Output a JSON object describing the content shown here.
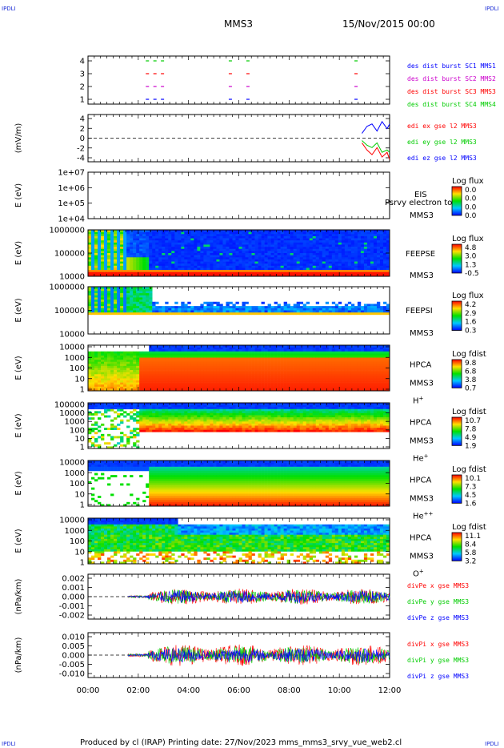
{
  "header": {
    "mission": "MMS3",
    "date": "15/Nov/2015 00:00",
    "corner_tl": "IPDLI",
    "corner_tr": "IPDLI",
    "corner_bl": "IPDLI",
    "corner_br": "IPDLI"
  },
  "footer": {
    "text": "Produced by cl (IRAP)   Printing date: 27/Nov/2023   mms_mms3_srvy_vue_web2.cl"
  },
  "colors": {
    "mms1": "#0000ff",
    "mms2": "#cc00cc",
    "mms3": "#ff0000",
    "mms4": "#00cc00",
    "frame": "#000000"
  },
  "chart_data": [
    {
      "type": "scatter",
      "panel": "burst",
      "ylim": [
        0.5,
        4.5
      ],
      "yticks": [
        "1",
        "2",
        "3",
        "4"
      ],
      "legend": [
        "des dist burst SC1 MMS1",
        "des dist burst SC2 MMS2",
        "des dist burst SC3 MMS3",
        "des dist burst SC4 MMS4"
      ],
      "series": [
        {
          "name": "des dist burst SC1 MMS1",
          "color": "#0000ff",
          "y": 1,
          "x": [
            2.3,
            2.6,
            2.9,
            5.6,
            6.3,
            10.6
          ]
        },
        {
          "name": "des dist burst SC2 MMS2",
          "color": "#cc00cc",
          "y": 2,
          "x": [
            2.3,
            2.6,
            2.9,
            5.6,
            6.3,
            10.6
          ]
        },
        {
          "name": "des dist burst SC3 MMS3",
          "color": "#ff0000",
          "y": 3,
          "x": [
            2.3,
            2.6,
            2.9,
            5.6,
            6.3,
            10.6
          ]
        },
        {
          "name": "des dist burst SC4 MMS4",
          "color": "#00cc00",
          "y": 4,
          "x": [
            2.3,
            2.6,
            2.9,
            5.6,
            6.3,
            10.6
          ]
        }
      ]
    },
    {
      "type": "line",
      "panel": "edi",
      "ylabel": "(mV/m)",
      "ylim": [
        -5,
        5
      ],
      "yticks": [
        "4",
        "2",
        "0",
        "-2",
        "-4"
      ],
      "legend": [
        "edi ex gse l2 MMS3",
        "edi ey gse l2 MMS3",
        "edi ez gse l2 MMS3"
      ],
      "series": [
        {
          "name": "edi ex gse l2 MMS3",
          "color": "#ff0000",
          "x": [
            10.9,
            11.1,
            11.3,
            11.5,
            11.7,
            11.9,
            12.0
          ],
          "values": [
            -1.0,
            -2.5,
            -3.5,
            -2.0,
            -4.0,
            -3.0,
            -4.5
          ]
        },
        {
          "name": "edi ey gse l2 MMS3",
          "color": "#00cc00",
          "x": [
            10.9,
            11.1,
            11.3,
            11.5,
            11.7,
            11.9,
            12.0
          ],
          "values": [
            -0.5,
            -1.5,
            -2.0,
            -1.0,
            -3.0,
            -2.5,
            -3.0
          ]
        },
        {
          "name": "edi ez gse l2 MMS3",
          "color": "#0000ff",
          "x": [
            10.9,
            11.1,
            11.3,
            11.5,
            11.7,
            11.9,
            12.0
          ],
          "values": [
            1.0,
            2.5,
            3.0,
            1.5,
            3.5,
            2.0,
            3.0
          ]
        }
      ]
    },
    {
      "type": "heatmap",
      "panel": "eis",
      "ylabel": "E (eV)",
      "yticks": [
        "1e+07",
        "1e+06",
        "1e+05",
        "1e+04"
      ],
      "instrument": "EIS",
      "overlay_label": "Psrvy electron to",
      "sc": "MMS3",
      "cbar_title": "Log flux",
      "cbar_ticks": [
        "0.0",
        "0.0",
        "0.0",
        "0.0"
      ]
    },
    {
      "type": "heatmap",
      "panel": "feepse",
      "ylabel": "E (eV)",
      "yticks": [
        "1000000",
        "100000",
        "10000"
      ],
      "instrument": "FEEPSE",
      "sc": "MMS3",
      "cbar_title": "Log flux",
      "cbar_ticks": [
        "4.8",
        "3.0",
        "1.3",
        "-0.5"
      ]
    },
    {
      "type": "heatmap",
      "panel": "feepsi",
      "ylabel": "E (eV)",
      "yticks": [
        "1000000",
        "100000",
        "10000"
      ],
      "instrument": "FEEPSI",
      "sc": "MMS3",
      "cbar_title": "Log flux",
      "cbar_ticks": [
        "4.2",
        "2.9",
        "1.6",
        "0.3"
      ]
    },
    {
      "type": "heatmap",
      "panel": "hpca_h",
      "ylabel": "E (eV)",
      "yticks": [
        "10000",
        "1000",
        "100",
        "10",
        "1"
      ],
      "instrument": "HPCA",
      "sc": "MMS3",
      "species": "H",
      "species_sup": "+",
      "cbar_title": "Log fdist",
      "cbar_ticks": [
        "9.8",
        "6.8",
        "3.8",
        "0.7"
      ]
    },
    {
      "type": "heatmap",
      "panel": "hpca_he",
      "ylabel": "E (eV)",
      "yticks": [
        "100000",
        "10000",
        "1000",
        "100",
        "10",
        "1"
      ],
      "instrument": "HPCA",
      "sc": "MMS3",
      "species": "He",
      "species_sup": "+",
      "cbar_title": "Log fdist",
      "cbar_ticks": [
        "10.7",
        "7.8",
        "4.9",
        "1.9"
      ]
    },
    {
      "type": "heatmap",
      "panel": "hpca_hepp",
      "ylabel": "E (eV)",
      "yticks": [
        "10000",
        "1000",
        "100",
        "10",
        "1"
      ],
      "instrument": "HPCA",
      "sc": "MMS3",
      "species": "He",
      "species_sup": "++",
      "cbar_title": "Log fdist",
      "cbar_ticks": [
        "10.1",
        "7.3",
        "4.5",
        "1.6"
      ]
    },
    {
      "type": "heatmap",
      "panel": "hpca_o",
      "ylabel": "E (eV)",
      "yticks": [
        "10000",
        "1000",
        "100",
        "10",
        "1"
      ],
      "instrument": "HPCA",
      "sc": "MMS3",
      "species": "O",
      "species_sup": "+",
      "cbar_title": "Log fdist",
      "cbar_ticks": [
        "11.1",
        "8.4",
        "5.8",
        "3.2"
      ]
    },
    {
      "type": "line",
      "panel": "divpe",
      "ylabel": "(nPa/km)",
      "ylim": [
        -0.0025,
        0.0025
      ],
      "yticks": [
        "0.002",
        "0.001",
        "0.000",
        "-0.001",
        "-0.002"
      ],
      "legend": [
        "divPe x gse MMS3",
        "divPe y gse MMS3",
        "divPe z gse MMS3"
      ],
      "series": [
        {
          "name": "divPe x gse MMS3",
          "color": "#ff0000",
          "amplitude": 0.0009
        },
        {
          "name": "divPe y gse MMS3",
          "color": "#00cc00",
          "amplitude": 0.0008
        },
        {
          "name": "divPe z gse MMS3",
          "color": "#0000ff",
          "amplitude": 0.0007
        }
      ]
    },
    {
      "type": "line",
      "panel": "divpi",
      "ylabel": "(nPa/km)",
      "ylim": [
        -0.0125,
        0.0125
      ],
      "yticks": [
        "0.010",
        "0.005",
        "0.000",
        "-0.005",
        "-0.010"
      ],
      "legend": [
        "divPi x gse MMS3",
        "divPi y gse MMS3",
        "divPi z gse MMS3"
      ],
      "series": [
        {
          "name": "divPi x gse MMS3",
          "color": "#ff0000",
          "amplitude": 0.006
        },
        {
          "name": "divPi y gse MMS3",
          "color": "#00cc00",
          "amplitude": 0.005
        },
        {
          "name": "divPi z gse MMS3",
          "color": "#0000ff",
          "amplitude": 0.004
        }
      ]
    }
  ],
  "xaxis": {
    "ticks": [
      "00:00",
      "02:00",
      "04:00",
      "06:00",
      "08:00",
      "10:00",
      "12:00"
    ],
    "xlim": [
      0,
      12
    ]
  }
}
